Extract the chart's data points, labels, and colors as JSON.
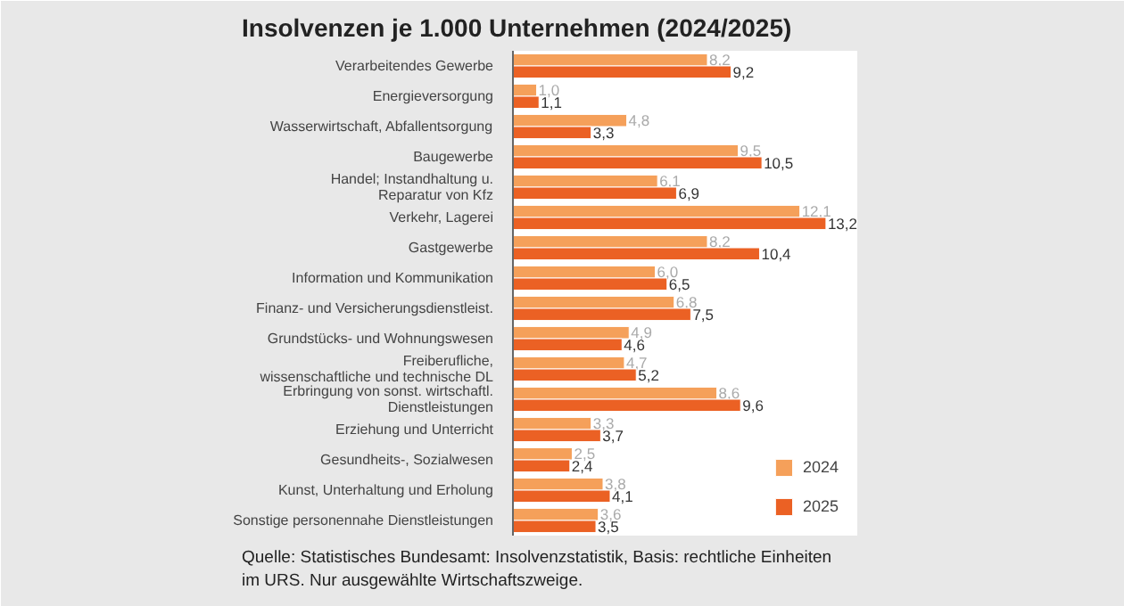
{
  "chart_data": {
    "type": "bar",
    "orientation": "horizontal",
    "title": "Insolvenzen je 1.000 Unternehmen (2024/2025)",
    "categories": [
      "Verarbeitendes Gewerbe",
      "Energieversorgung",
      "Wasserwirtschaft, Abfallentsorgung",
      "Baugewerbe",
      "Handel; Instandhaltung u.\nReparatur von Kfz",
      "Verkehr, Lagerei",
      "Gastgewerbe",
      "Information und Kommunikation",
      "Finanz- und Versicherungsdienstleist.",
      "Grundstücks- und Wohnungswesen",
      "Freiberufliche,\nwissenschaftliche und technische DL",
      "Erbringung von sonst. wirtschaftl.\nDienstleistungen",
      "Erziehung und Unterricht",
      "Gesundheits-, Sozialwesen",
      "Kunst, Unterhaltung und Erholung",
      "Sonstige personennahe Dienstleistungen"
    ],
    "series": [
      {
        "name": "2024",
        "color": "#f5a05a",
        "values": [
          8.2,
          1.0,
          4.8,
          9.5,
          6.1,
          12.1,
          8.2,
          6.0,
          6.8,
          4.9,
          4.7,
          8.6,
          3.3,
          2.5,
          3.8,
          3.6
        ],
        "value_labels": [
          "8,2",
          "1,0",
          "4,8",
          "9,5",
          "6,1",
          "12,1",
          "8,2",
          "6,0",
          "6,8",
          "4,9",
          "4,7",
          "8,6",
          "3,3",
          "2,5",
          "3,8",
          "3,6"
        ]
      },
      {
        "name": "2025",
        "color": "#eb6124",
        "values": [
          9.2,
          1.1,
          3.3,
          10.5,
          6.9,
          13.2,
          10.4,
          6.5,
          7.5,
          4.6,
          5.2,
          9.6,
          3.7,
          2.4,
          4.1,
          3.5
        ],
        "value_labels": [
          "9,2",
          "1,1",
          "3,3",
          "10,5",
          "6,9",
          "13,2",
          "10,4",
          "6,5",
          "7,5",
          "4,6",
          "5,2",
          "9,6",
          "3,7",
          "2,4",
          "4,1",
          "3,5"
        ]
      }
    ],
    "legend": "bottom right",
    "grid": false,
    "annotations": [
      "Quelle: Statistisches Bundesamt: Insolvenzstatistik, Basis: rechtliche Einheiten\nim URS. Nur ausgewählte Wirtschaftszweige."
    ]
  }
}
